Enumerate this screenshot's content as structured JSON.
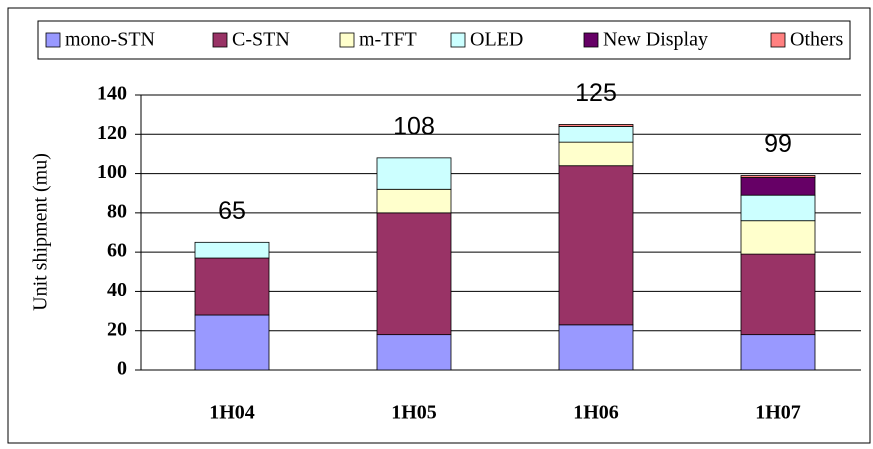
{
  "chart_data": {
    "type": "stacked_bar",
    "y_label": "Unit shipment (mu)",
    "categories": [
      "1H04",
      "1H05",
      "1H06",
      "1H07"
    ],
    "series": [
      {
        "name": "mono-STN",
        "color": "#9999ff",
        "values": [
          28,
          18,
          23,
          18
        ]
      },
      {
        "name": "C-STN",
        "color": "#993366",
        "values": [
          29,
          62,
          81,
          41
        ]
      },
      {
        "name": "m-TFT",
        "color": "#ffffcc",
        "values": [
          0,
          12,
          12,
          17
        ]
      },
      {
        "name": "OLED",
        "color": "#ccffff",
        "values": [
          8,
          16,
          8,
          13
        ]
      },
      {
        "name": "New Display",
        "color": "#660066",
        "values": [
          0,
          0,
          0,
          9
        ]
      },
      {
        "name": "Others",
        "color": "#ff8080",
        "values": [
          0,
          0,
          1,
          1
        ]
      }
    ],
    "totals": [
      65,
      108,
      125,
      99
    ],
    "ylim": [
      0,
      140
    ],
    "yticks": [
      0,
      20,
      40,
      60,
      80,
      100,
      120,
      140
    ],
    "grid": true
  }
}
